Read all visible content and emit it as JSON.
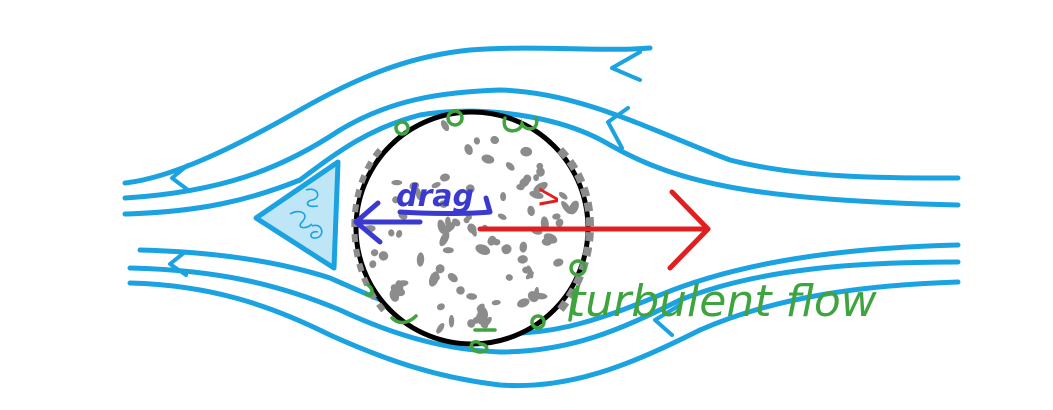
{
  "labels": {
    "drag": "drag",
    "velocity": "v",
    "flow_type": "turbulent flow",
    "wake_marks": "ε ω"
  },
  "colors": {
    "streamline": "#1aa3e0",
    "sphere_outline": "#000000",
    "surface_texture": "#8c8c8c",
    "velocity_arrow": "#e02020",
    "drag_arrow": "#3a3ad0",
    "turbulence": "#3fa33f",
    "wake_fill": "#bfe6f7"
  },
  "icons": {
    "sphere": "dimpled-ball-icon",
    "wake": "wake-triangle-icon"
  }
}
